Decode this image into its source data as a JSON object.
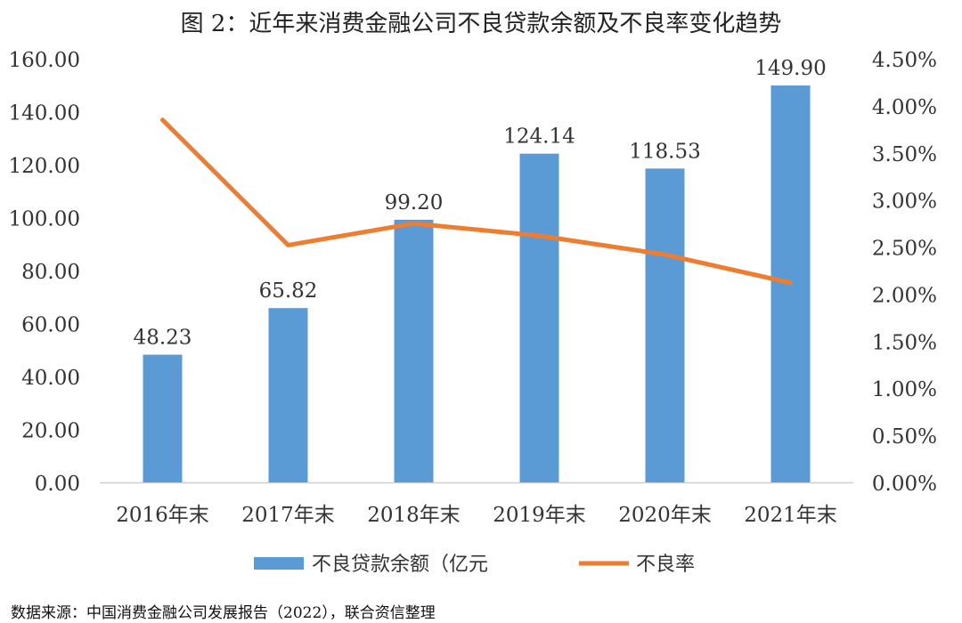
{
  "chart_data": {
    "type": "bar",
    "title": "图 2：近年来消费金融公司不良贷款余额及不良率变化趋势",
    "categories": [
      "2016年末",
      "2017年末",
      "2018年末",
      "2019年末",
      "2020年末",
      "2021年末"
    ],
    "series": [
      {
        "name": "不良贷款余额（亿元",
        "type": "bar",
        "axis": "left",
        "values": [
          48.23,
          65.82,
          99.2,
          124.14,
          118.53,
          149.9
        ],
        "labels": [
          "48.23",
          "65.82",
          "99.20",
          "124.14",
          "118.53",
          "149.90"
        ],
        "color": "#5b9bd5"
      },
      {
        "name": "不良率",
        "type": "line",
        "axis": "right",
        "values": [
          0.0385,
          0.0252,
          0.0275,
          0.0262,
          0.0242,
          0.0212
        ],
        "color": "#ed7d31"
      }
    ],
    "y_left": {
      "range": [
        0,
        160
      ],
      "ticks": [
        "0.00",
        "20.00",
        "40.00",
        "60.00",
        "80.00",
        "100.00",
        "120.00",
        "140.00",
        "160.00"
      ]
    },
    "y_right": {
      "range": [
        0,
        0.045
      ],
      "ticks": [
        "0.00%",
        "0.50%",
        "1.00%",
        "1.50%",
        "2.00%",
        "2.50%",
        "3.00%",
        "3.50%",
        "4.00%",
        "4.50%"
      ]
    },
    "legend": "bottom",
    "grid": false
  },
  "source": "数据来源：中国消费金融公司发展报告（2022），联合资信整理"
}
